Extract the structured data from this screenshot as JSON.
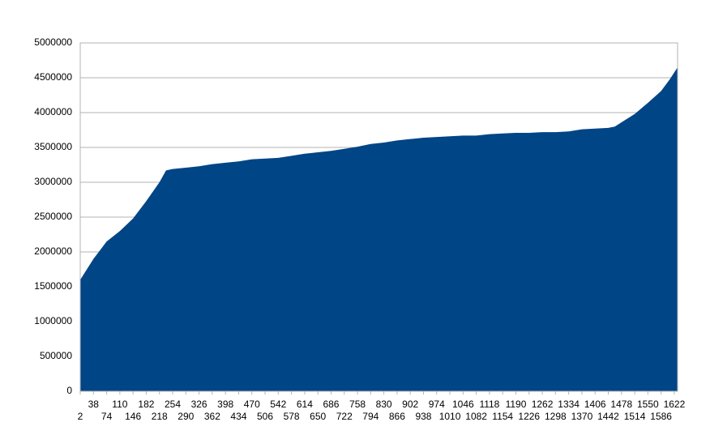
{
  "chart_data": {
    "type": "area",
    "color": "#004586",
    "grid": true,
    "x": [
      2,
      38,
      74,
      110,
      146,
      182,
      218,
      236,
      254,
      290,
      326,
      362,
      398,
      434,
      470,
      506,
      542,
      578,
      614,
      650,
      686,
      722,
      758,
      794,
      830,
      866,
      902,
      938,
      974,
      1010,
      1046,
      1082,
      1118,
      1154,
      1190,
      1226,
      1262,
      1298,
      1334,
      1370,
      1406,
      1442,
      1460,
      1478,
      1514,
      1550,
      1586,
      1610,
      1631
    ],
    "values": [
      1600000,
      1900000,
      2150000,
      2300000,
      2480000,
      2730000,
      3000000,
      3170000,
      3190000,
      3210000,
      3230000,
      3260000,
      3280000,
      3300000,
      3330000,
      3340000,
      3350000,
      3380000,
      3410000,
      3430000,
      3450000,
      3480000,
      3510000,
      3550000,
      3570000,
      3600000,
      3620000,
      3640000,
      3650000,
      3660000,
      3670000,
      3670000,
      3690000,
      3700000,
      3710000,
      3710000,
      3720000,
      3720000,
      3730000,
      3760000,
      3770000,
      3780000,
      3800000,
      3860000,
      3980000,
      4140000,
      4310000,
      4480000,
      4650000
    ],
    "xlim": [
      2,
      1631
    ],
    "xticks": [
      2,
      38,
      74,
      110,
      146,
      182,
      218,
      254,
      290,
      326,
      362,
      398,
      434,
      470,
      506,
      542,
      578,
      614,
      650,
      686,
      722,
      758,
      794,
      830,
      866,
      902,
      938,
      974,
      1010,
      1046,
      1082,
      1118,
      1154,
      1190,
      1226,
      1262,
      1298,
      1334,
      1370,
      1406,
      1442,
      1478,
      1514,
      1550,
      1586,
      1622
    ],
    "ylim": [
      0,
      5000000
    ],
    "yticks": [
      0,
      500000,
      1000000,
      1500000,
      2000000,
      2500000,
      3000000,
      3500000,
      4000000,
      4500000,
      5000000
    ]
  }
}
